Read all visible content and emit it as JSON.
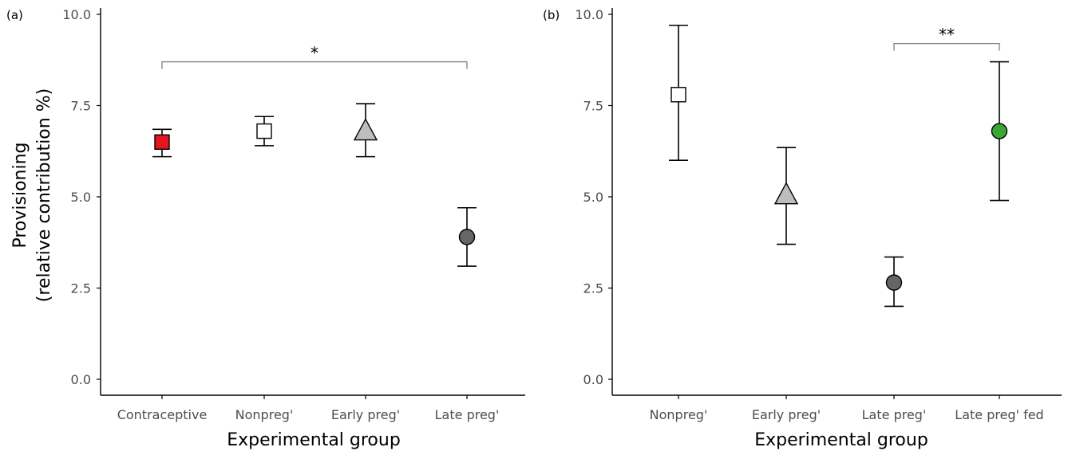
{
  "chart_data": [
    {
      "panel_label": "(a)",
      "type": "scatter",
      "categories": [
        "Contraceptive",
        "Nonpreg'",
        "Early preg'",
        "Late preg'"
      ],
      "values": [
        6.5,
        6.8,
        6.8,
        3.9
      ],
      "error_low": [
        6.1,
        6.4,
        6.1,
        3.1
      ],
      "error_high": [
        6.85,
        7.2,
        7.55,
        4.7
      ],
      "markers": [
        "square",
        "square",
        "triangle",
        "circle"
      ],
      "marker_colors": [
        "#e0171d",
        "#ffffff",
        "#bdbdbd",
        "#666666"
      ],
      "ylim": [
        0,
        10
      ],
      "yticks": [
        0,
        2.5,
        5,
        7.5,
        10
      ],
      "ytick_labels": [
        "0.0",
        "2.5",
        "5.0",
        "7.5",
        "10.0"
      ],
      "xlabel": "Experimental group",
      "ylabel_line1": "Provisioning",
      "ylabel_line2": "(relative contribution %)",
      "significance": {
        "from": "Contraceptive",
        "to": "Late preg'",
        "y": 8.7,
        "label": "*"
      }
    },
    {
      "panel_label": "(b)",
      "type": "scatter",
      "categories": [
        "Nonpreg'",
        "Early preg'",
        "Late preg'",
        "Late preg' fed"
      ],
      "values": [
        7.8,
        5.05,
        2.65,
        6.8
      ],
      "error_low": [
        6.0,
        3.7,
        2.0,
        4.9
      ],
      "error_high": [
        9.7,
        6.35,
        3.35,
        8.7
      ],
      "markers": [
        "square",
        "triangle",
        "circle",
        "circle"
      ],
      "marker_colors": [
        "#ffffff",
        "#bdbdbd",
        "#666666",
        "#3ba633"
      ],
      "ylim": [
        0,
        10
      ],
      "yticks": [
        0,
        2.5,
        5,
        7.5,
        10
      ],
      "ytick_labels": [
        "0.0",
        "2.5",
        "5.0",
        "7.5",
        "10.0"
      ],
      "xlabel": "Experimental group",
      "significance": {
        "from": "Late preg'",
        "to": "Late preg' fed",
        "y": 9.2,
        "label": "**"
      }
    }
  ]
}
